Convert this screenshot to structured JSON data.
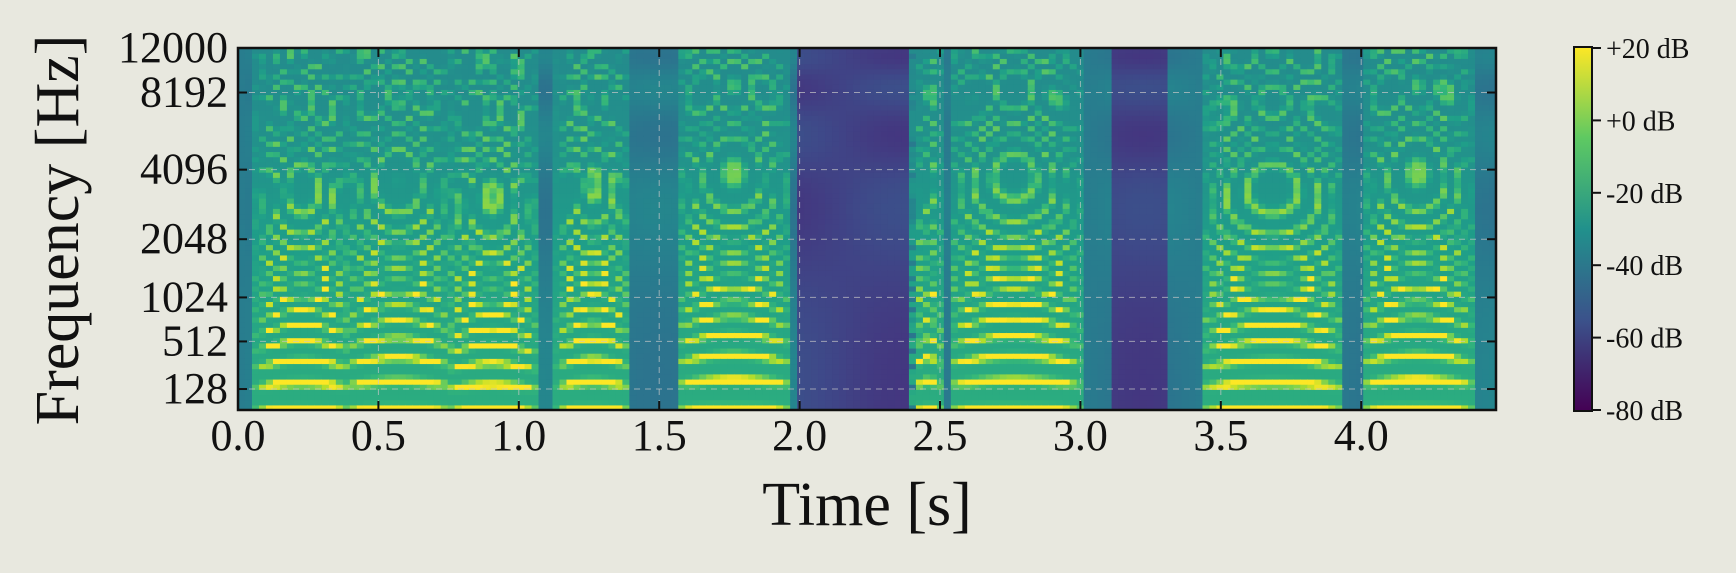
{
  "chart_data": {
    "type": "heatmap",
    "title": "",
    "xlabel": "Time [s]",
    "ylabel": "Frequency [Hz]",
    "x_axis": {
      "range": [
        0,
        4.48
      ],
      "ticks": [
        0.0,
        0.5,
        1.0,
        1.5,
        2.0,
        2.5,
        3.0,
        3.5,
        4.0
      ],
      "tick_labels": [
        "0.0",
        "0.5",
        "1.0",
        "1.5",
        "2.0",
        "2.5",
        "3.0",
        "3.5",
        "4.0"
      ]
    },
    "y_axis": {
      "scale": "mel",
      "range": [
        0,
        12000
      ],
      "ticks": [
        128,
        512,
        1024,
        2048,
        4096,
        8192,
        12000
      ],
      "tick_labels": [
        "128",
        "512",
        "1024",
        "2048",
        "4096",
        "8192",
        "12000"
      ]
    },
    "grid": true,
    "colormap": "viridis",
    "colorbar": {
      "range_db": [
        -80,
        20
      ],
      "ticks": [
        20,
        0,
        -20,
        -40,
        -60,
        -80
      ],
      "tick_labels": [
        "+20 dB",
        "+0 dB",
        "-20 dB",
        "-40 dB",
        "-60 dB",
        "-80 dB"
      ],
      "placement": "right"
    },
    "voiced_segments": [
      {
        "t_start": 0.08,
        "t_end": 0.38,
        "f0_hz": 150,
        "level_db": 18
      },
      {
        "t_start": 0.4,
        "t_end": 0.74,
        "f0_hz": 160,
        "level_db": 16
      },
      {
        "t_start": 0.76,
        "t_end": 1.05,
        "f0_hz": 140,
        "level_db": 18
      },
      {
        "t_start": 1.15,
        "t_end": 1.38,
        "f0_hz": 155,
        "level_db": 19
      },
      {
        "t_start": 1.58,
        "t_end": 1.95,
        "f0_hz": 170,
        "level_db": 17
      },
      {
        "t_start": 2.42,
        "t_end": 2.5,
        "f0_hz": 160,
        "level_db": 14
      },
      {
        "t_start": 2.55,
        "t_end": 2.98,
        "f0_hz": 165,
        "level_db": 18
      },
      {
        "t_start": 3.45,
        "t_end": 3.92,
        "f0_hz": 150,
        "level_db": 18
      },
      {
        "t_start": 4.02,
        "t_end": 4.38,
        "f0_hz": 170,
        "level_db": 19
      }
    ],
    "silent_segments": [
      {
        "t_start": 2.0,
        "t_end": 2.38
      },
      {
        "t_start": 3.1,
        "t_end": 3.32
      }
    ]
  }
}
